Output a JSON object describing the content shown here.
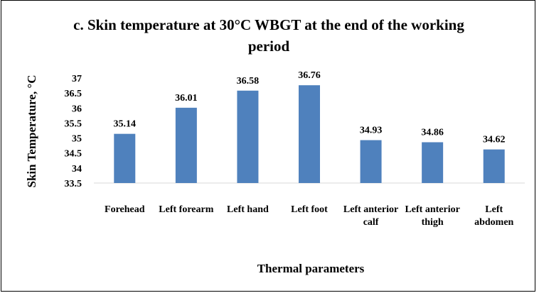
{
  "chart_data": {
    "type": "bar",
    "title": "c. Skin temperature at 30°C WBGT at the end of the working period",
    "categories": [
      "Forehead",
      "Left forearm",
      "Left hand",
      "Left foot",
      "Left anterior calf",
      "Left anterior thigh",
      "Left abdomen"
    ],
    "values": [
      35.14,
      36.01,
      36.58,
      36.76,
      34.93,
      34.86,
      34.62
    ],
    "color": "#4f81bd",
    "ylim": [
      33.5,
      37
    ],
    "yticks": [
      33.5,
      34,
      34.5,
      35,
      35.5,
      36,
      36.5,
      37
    ],
    "y_label": "Skin Temperature, °C",
    "x_label": "Thermal parameters",
    "grid": false
  }
}
